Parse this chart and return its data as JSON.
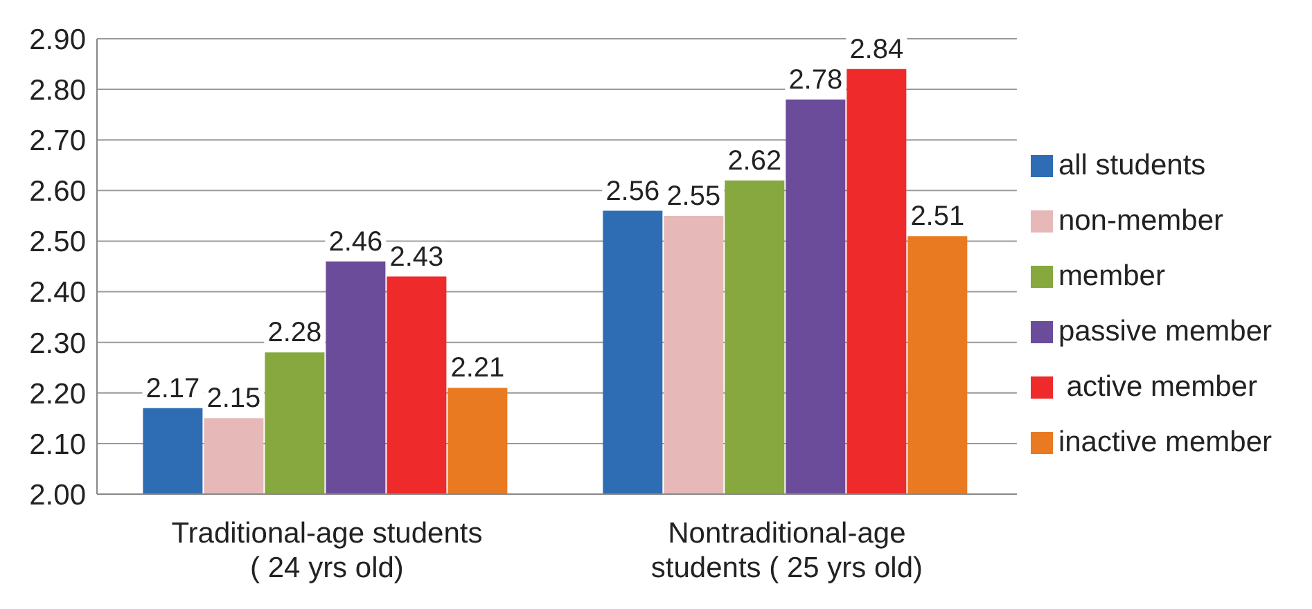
{
  "chart_data": {
    "type": "bar",
    "categories": [
      "Traditional-age students ( 24 yrs old)",
      "Nontraditional-age students ( 25 yrs old)"
    ],
    "series": [
      {
        "name": "all students",
        "color": "#2e6db4",
        "values": [
          2.17,
          2.56
        ]
      },
      {
        "name": "non-member",
        "color": "#e6b9b8",
        "values": [
          2.15,
          2.55
        ]
      },
      {
        "name": "member",
        "color": "#86a83e",
        "values": [
          2.28,
          2.62
        ]
      },
      {
        "name": "passive member",
        "color": "#6b4c9a",
        "values": [
          2.46,
          2.78
        ]
      },
      {
        "name": " active member",
        "color": "#ee2a2b",
        "values": [
          2.43,
          2.84
        ]
      },
      {
        "name": "inactive member",
        "color": "#e97a21",
        "values": [
          2.21,
          2.51
        ]
      }
    ],
    "ylim": [
      2.0,
      2.9
    ],
    "yticks": [
      {
        "value": 2.0,
        "label": "2.00"
      },
      {
        "value": 2.1,
        "label": "2.10"
      },
      {
        "value": 2.2,
        "label": "2.20"
      },
      {
        "value": 2.3,
        "label": "2.30"
      },
      {
        "value": 2.4,
        "label": "2.40"
      },
      {
        "value": 2.5,
        "label": "2.50"
      },
      {
        "value": 2.6,
        "label": "2.60"
      },
      {
        "value": 2.7,
        "label": "2.70"
      },
      {
        "value": 2.8,
        "label": "2.80"
      },
      {
        "value": 2.9,
        "label": "2.90"
      }
    ],
    "grid": "y",
    "legend": "right",
    "data_labels": true
  }
}
